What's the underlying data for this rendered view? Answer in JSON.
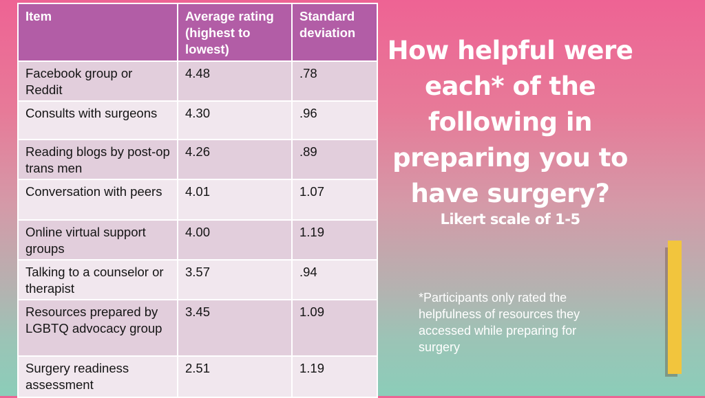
{
  "table": {
    "headers": [
      "Item",
      "Average rating (highest to lowest)",
      "Standard deviation"
    ],
    "rows": [
      {
        "item": "Facebook group or Reddit",
        "avg": "4.48",
        "sd": ".78"
      },
      {
        "item": "Consults with surgeons",
        "avg": "4.30",
        "sd": ".96"
      },
      {
        "item": "Reading blogs by post-op trans men",
        "avg": "4.26",
        "sd": ".89"
      },
      {
        "item": "Conversation with peers",
        "avg": "4.01",
        "sd": "1.07"
      },
      {
        "item": "Online virtual support groups",
        "avg": "4.00",
        "sd": "1.19"
      },
      {
        "item": "Talking to a counselor or therapist",
        "avg": "3.57",
        "sd": ".94"
      },
      {
        "item": "Resources prepared by LGBTQ advocacy group",
        "avg": "3.45",
        "sd": "1.09"
      },
      {
        "item": "Surgery readiness assessment",
        "avg": "2.51",
        "sd": "1.19"
      }
    ]
  },
  "heading": "How helpful were each* of the following in preparing you to have surgery?",
  "subtitle": "Likert scale of 1-5",
  "footnote": "*Participants only rated the helpfulness of resources they accessed while preparing for surgery",
  "colors": {
    "header_bg": "#b25da6",
    "row_odd": "#e2cedc",
    "row_even": "#f1e7ee",
    "accent": "#f2c53d",
    "gradient_top": "#ee6394",
    "gradient_bottom": "#8bcdb9"
  }
}
